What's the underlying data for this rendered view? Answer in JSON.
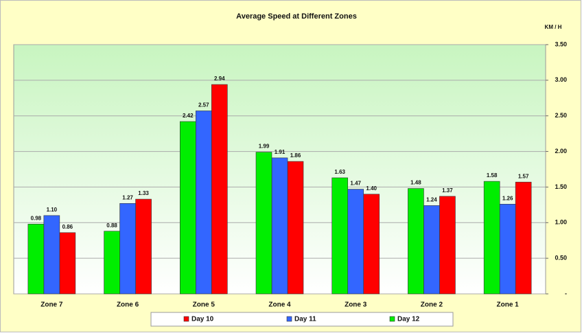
{
  "chart_data": {
    "type": "bar",
    "title": "Average Speed at Different Zones",
    "y_axis_label": "KM / H",
    "categories": [
      "Zone 7",
      "Zone 6",
      "Zone 5",
      "Zone 4",
      "Zone 3",
      "Zone 2",
      "Zone 1"
    ],
    "series": [
      {
        "name": "Day 10",
        "color": "#ff0000",
        "values": [
          0.86,
          1.33,
          2.94,
          1.86,
          1.4,
          1.37,
          1.57
        ],
        "value_labels": [
          "0.86",
          "1.33",
          "2.94",
          "1.86",
          "1.40",
          "1.37",
          "1.57"
        ]
      },
      {
        "name": "Day 11",
        "color": "#3366ff",
        "values": [
          1.1,
          1.27,
          2.57,
          1.91,
          1.47,
          1.24,
          1.26
        ],
        "value_labels": [
          "1.10",
          "1.27",
          "2.57",
          "1.91",
          "1.47",
          "1.24",
          "1.26"
        ]
      },
      {
        "name": "Day 12",
        "color": "#00ee00",
        "values": [
          0.98,
          0.88,
          2.42,
          1.99,
          1.63,
          1.48,
          1.58
        ],
        "value_labels": [
          "0.98",
          "0.88",
          "2.42",
          "1.99",
          "1.63",
          "1.48",
          "1.58"
        ]
      }
    ],
    "ylim": [
      0,
      3.5
    ],
    "yticks": [
      {
        "value": 0,
        "label": "-"
      },
      {
        "value": 0.5,
        "label": "0.50"
      },
      {
        "value": 1,
        "label": "1.00"
      },
      {
        "value": 1.5,
        "label": "1.50"
      },
      {
        "value": 2,
        "label": "2.00"
      },
      {
        "value": 2.5,
        "label": "2.50"
      },
      {
        "value": 3,
        "label": "3.00"
      },
      {
        "value": 3.5,
        "label": "3.50"
      }
    ],
    "grid": true,
    "legend": "bottom"
  }
}
